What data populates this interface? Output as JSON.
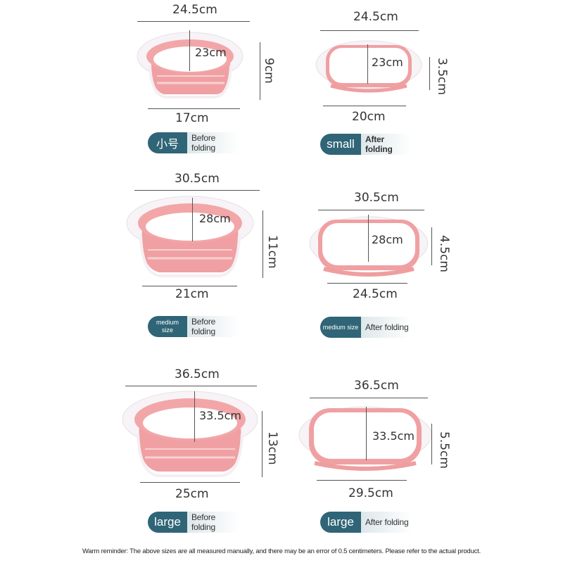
{
  "colors": {
    "pink": "#f2a6a6",
    "pink_dark": "#e98e90",
    "white": "#ffffff",
    "badge": "#2f6577"
  },
  "basins": [
    {
      "name": "small-before",
      "width": "24.5cm",
      "inner": "23cm",
      "height": "9cm",
      "bottom": "17cm",
      "badge_size": "小号",
      "badge_state": "Before folding"
    },
    {
      "name": "small-after",
      "width": "24.5cm",
      "inner": "23cm",
      "height": "3.5cm",
      "bottom": "20cm",
      "badge_size": "small",
      "badge_state": "After folding"
    },
    {
      "name": "medium-before",
      "width": "30.5cm",
      "inner": "28cm",
      "height": "11cm",
      "bottom": "21cm",
      "badge_size": "medium size",
      "badge_state": "Before folding"
    },
    {
      "name": "medium-after",
      "width": "30.5cm",
      "inner": "28cm",
      "height": "4.5cm",
      "bottom": "24.5cm",
      "badge_size": "medium size",
      "badge_state": "After folding"
    },
    {
      "name": "large-before",
      "width": "36.5cm",
      "inner": "33.5cm",
      "height": "13cm",
      "bottom": "25cm",
      "badge_size": "large",
      "badge_state": "Before folding"
    },
    {
      "name": "large-after",
      "width": "36.5cm",
      "inner": "33.5cm",
      "height": "5.5cm",
      "bottom": "29.5cm",
      "badge_size": "large",
      "badge_state": "After folding"
    }
  ],
  "medium_badge_lines": [
    "medium",
    "size"
  ],
  "footnote": "Warm reminder: The above sizes are all measured manually, and there may be an error of 0.5 centimeters. Please refer to the actual product."
}
